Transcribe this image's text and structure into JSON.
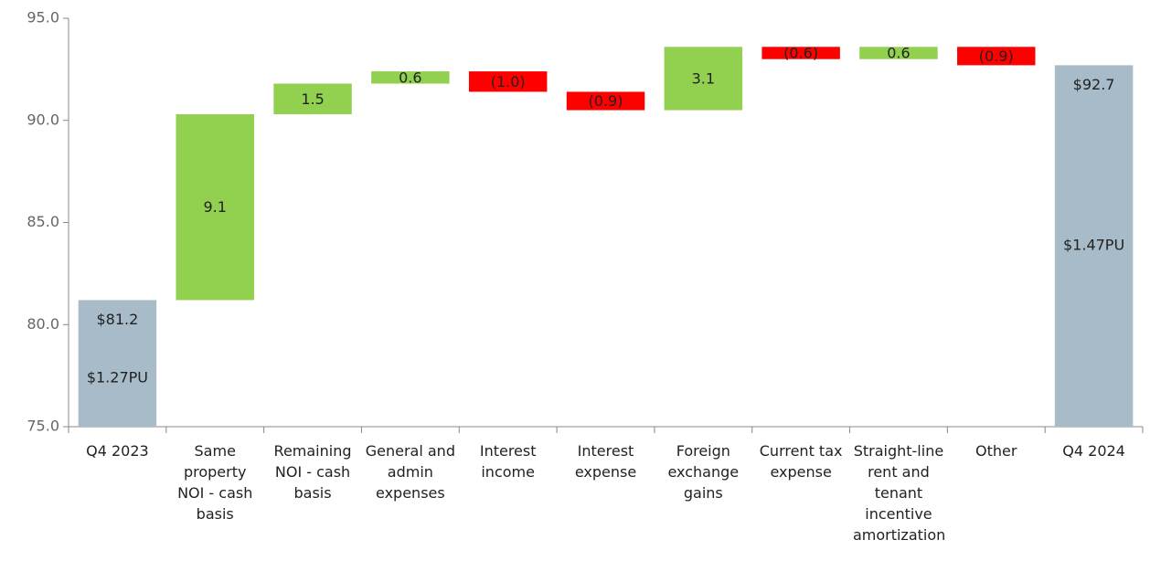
{
  "chart_data": {
    "type": "waterfall",
    "categories": [
      "Q4 2023",
      "Same property NOI - cash basis",
      "Remaining NOI - cash basis",
      "General and admin expenses",
      "Interest income",
      "Interest expense",
      "Foreign exchange gains",
      "Current tax expense",
      "Straight-line rent and tenant incentive amortization",
      "Other",
      "Q4 2024"
    ],
    "values": [
      81.2,
      9.1,
      1.5,
      0.6,
      -1.0,
      -0.9,
      3.1,
      -0.6,
      0.6,
      -0.9,
      92.7
    ],
    "value_labels": [
      "$81.2",
      "9.1",
      "1.5",
      "0.6",
      "(1.0)",
      "(0.9)",
      "3.1",
      "(0.6)",
      "0.6",
      "(0.9)",
      "$92.7"
    ],
    "per_unit_labels": [
      "$1.27PU",
      null,
      null,
      null,
      null,
      null,
      null,
      null,
      null,
      null,
      "$1.47PU"
    ],
    "is_total": [
      true,
      false,
      false,
      false,
      false,
      false,
      false,
      false,
      false,
      false,
      true
    ],
    "total_color": "#a7bcc8",
    "increase_color": "#92d050",
    "decrease_color": "#ff0000",
    "ylim": [
      75,
      95
    ],
    "yticks": [
      {
        "value": 75,
        "label": "75.0"
      },
      {
        "value": 80,
        "label": "80.0"
      },
      {
        "value": 85,
        "label": "85.0"
      },
      {
        "value": 90,
        "label": "90.0"
      },
      {
        "value": 95,
        "label": "95.0"
      }
    ]
  }
}
